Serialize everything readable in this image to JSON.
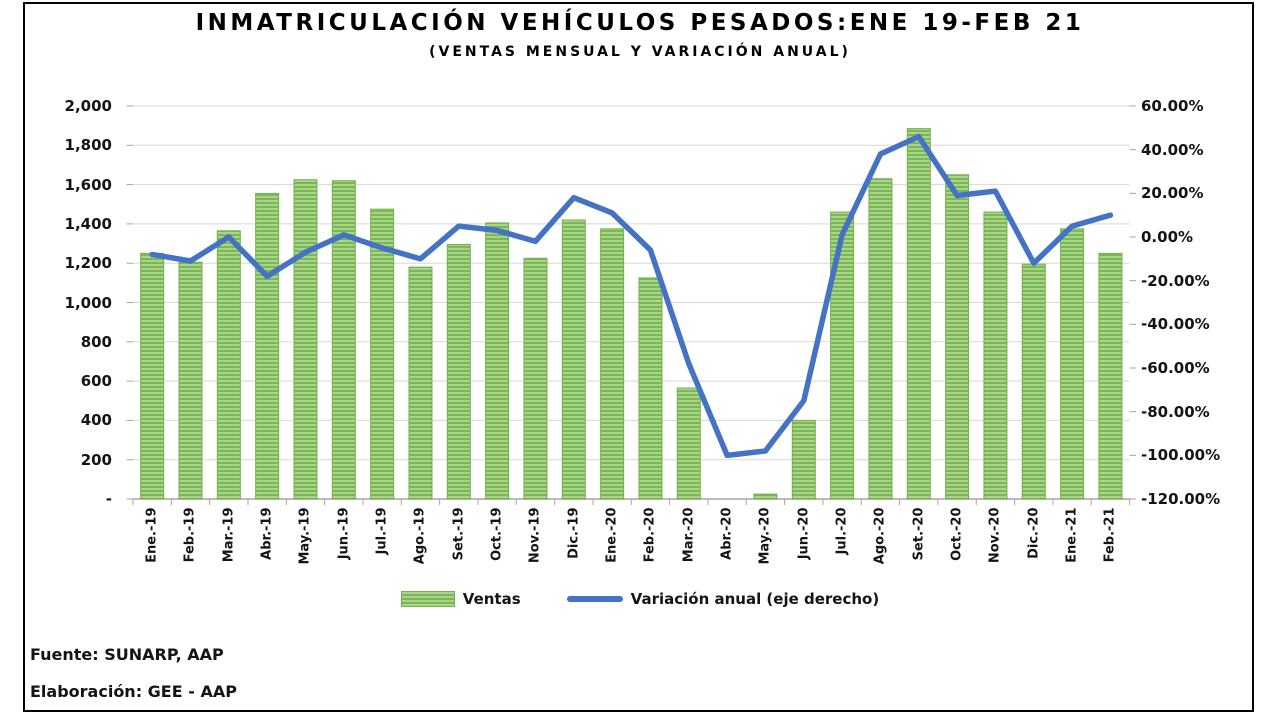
{
  "title": "INMATRICULACIÓN VEHÍCULOS PESADOS:ENE 19-FEB 21",
  "subtitle": "(VENTAS MENSUAL Y VARIACIÓN ANUAL)",
  "footer": {
    "source": "Fuente: SUNARP, AAP",
    "elaboration": "Elaboración: GEE - AAP"
  },
  "colors": {
    "bar_green": "#7cb757",
    "bar_green_light": "#a9d489",
    "bar_border": "#74b04b",
    "line_blue": "#4472c4",
    "gridline": "#d8d8d8",
    "axis": "#a6a6a6"
  },
  "chart_data": {
    "type": "bar",
    "subtype": "combo bar+line, dual axis",
    "grid": true,
    "legend_position": "bottom",
    "categories": [
      "Ene.-19",
      "Feb.-19",
      "Mar.-19",
      "Abr.-19",
      "May.-19",
      "Jun.-19",
      "Jul.-19",
      "Ago.-19",
      "Set.-19",
      "Oct.-19",
      "Nov.-19",
      "Dic.-19",
      "Ene.-20",
      "Feb.-20",
      "Mar.-20",
      "Abr.-20",
      "May.-20",
      "Jun.-20",
      "Jul.-20",
      "Ago.-20",
      "Set.-20",
      "Oct.-20",
      "Nov.-20",
      "Dic.-20",
      "Ene.-21",
      "Feb.-21"
    ],
    "series": [
      {
        "name": "Ventas",
        "type": "bar",
        "axis": "left",
        "values": [
          1250,
          1205,
          1365,
          1555,
          1625,
          1620,
          1475,
          1180,
          1295,
          1405,
          1225,
          1420,
          1375,
          1125,
          565,
          0,
          25,
          400,
          1460,
          1630,
          1885,
          1650,
          1460,
          1195,
          1375,
          1250
        ]
      },
      {
        "name": "Variación anual (eje derecho)",
        "type": "line",
        "axis": "right",
        "values": [
          -8,
          -11,
          0,
          -18,
          -7,
          1,
          -5,
          -10,
          5,
          3,
          -2,
          18,
          11,
          -6,
          -58,
          -100,
          -98,
          -75,
          1,
          38,
          46,
          19,
          21,
          -12,
          5,
          10
        ]
      }
    ],
    "left_axis": {
      "min": 0,
      "max": 2000,
      "tick_labels": [
        "2,000",
        "1,800",
        "1,600",
        "1,400",
        "1,200",
        "1,000",
        "800",
        "600",
        "400",
        "200",
        "-"
      ]
    },
    "right_axis": {
      "min": -120,
      "max": 60,
      "tick_labels": [
        "60.00%",
        "40.00%",
        "20.00%",
        "0.00%",
        "-20.00%",
        "-40.00%",
        "-60.00%",
        "-80.00%",
        "-100.00%",
        "-120.00%"
      ]
    }
  }
}
